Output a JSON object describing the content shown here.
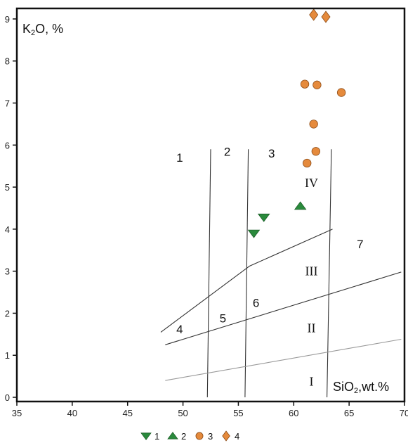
{
  "chart_data": {
    "type": "scatter",
    "title": "",
    "xlabel": "SiO2,wt.%",
    "ylabel": "K2O, %",
    "xlim": [
      35,
      70
    ],
    "ylim": [
      -0.1,
      9.25
    ],
    "xticks": [
      "35",
      "40",
      "45",
      "50",
      "55",
      "60",
      "65",
      "70"
    ],
    "yticks": [
      "0",
      "1",
      "2",
      "3",
      "4",
      "5",
      "6",
      "7",
      "8",
      "9"
    ],
    "grid": false,
    "legend_position": "bottom-center",
    "series": [
      {
        "name": "1",
        "marker": "triangle-down",
        "color": "#2a8a3c",
        "points": [
          [
            57.3,
            4.28
          ],
          [
            56.4,
            3.9
          ]
        ]
      },
      {
        "name": "2",
        "marker": "triangle-up",
        "color": "#2a8a3c",
        "points": [
          [
            60.6,
            4.55
          ]
        ]
      },
      {
        "name": "3",
        "marker": "circle",
        "color": "#e58a3c",
        "points": [
          [
            61.0,
            7.45
          ],
          [
            62.1,
            7.43
          ],
          [
            64.3,
            7.25
          ],
          [
            61.8,
            6.5
          ],
          [
            62.0,
            5.85
          ],
          [
            61.2,
            5.57
          ]
        ]
      },
      {
        "name": "4",
        "marker": "diamond",
        "color": "#e58a3c",
        "points": [
          [
            61.8,
            9.1
          ],
          [
            62.9,
            9.05
          ]
        ]
      }
    ],
    "boundary_lines": [
      {
        "id": "vertical-52",
        "points": [
          [
            52.2,
            0
          ],
          [
            52.5,
            5.9
          ]
        ],
        "color": "#333333"
      },
      {
        "id": "vertical-56",
        "points": [
          [
            55.6,
            0
          ],
          [
            55.9,
            5.9
          ]
        ],
        "color": "#333333"
      },
      {
        "id": "vertical-63",
        "points": [
          [
            63.0,
            0
          ],
          [
            63.4,
            5.9
          ]
        ],
        "color": "#333333"
      },
      {
        "id": "upper-boundary",
        "points": [
          [
            48,
            1.55
          ],
          [
            56,
            3.12
          ],
          [
            63.5,
            4.0
          ]
        ],
        "color": "#333333"
      },
      {
        "id": "middle-boundary",
        "points": [
          [
            48.4,
            1.25
          ],
          [
            69.7,
            2.98
          ]
        ],
        "color": "#333333"
      },
      {
        "id": "lower-boundary",
        "points": [
          [
            48.4,
            0.4
          ],
          [
            69.7,
            1.38
          ]
        ],
        "color": "#999999"
      }
    ],
    "field_labels": [
      {
        "text": "1",
        "x": 49.7,
        "y": 5.6,
        "style": "field"
      },
      {
        "text": "2",
        "x": 54.0,
        "y": 5.75,
        "style": "field"
      },
      {
        "text": "3",
        "x": 58.0,
        "y": 5.7,
        "style": "field"
      },
      {
        "text": "IV",
        "x": 61.6,
        "y": 5.0,
        "style": "roman"
      },
      {
        "text": "7",
        "x": 66.0,
        "y": 3.55,
        "style": "field"
      },
      {
        "text": "III",
        "x": 61.6,
        "y": 2.9,
        "style": "roman"
      },
      {
        "text": "6",
        "x": 56.6,
        "y": 2.15,
        "style": "field"
      },
      {
        "text": "5",
        "x": 53.6,
        "y": 1.78,
        "style": "field"
      },
      {
        "text": "4",
        "x": 49.7,
        "y": 1.52,
        "style": "field"
      },
      {
        "text": "II",
        "x": 61.6,
        "y": 1.55,
        "style": "roman"
      },
      {
        "text": "I",
        "x": 61.6,
        "y": 0.28,
        "style": "roman"
      }
    ],
    "legend": [
      {
        "label": "1",
        "marker": "triangle-down",
        "color": "#2a8a3c"
      },
      {
        "label": "2",
        "marker": "triangle-up",
        "color": "#2a8a3c"
      },
      {
        "label": "3",
        "marker": "circle",
        "color": "#e58a3c"
      },
      {
        "label": "4",
        "marker": "diamond",
        "color": "#e58a3c"
      }
    ]
  }
}
